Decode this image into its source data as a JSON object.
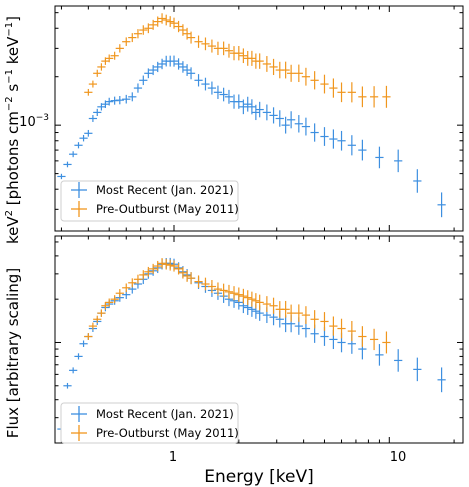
{
  "chart_data": [
    {
      "type": "scatter",
      "subtype": "errorbar",
      "ylabel_main": "keV",
      "ylabel_sup1": "2",
      "ylabel_mid": " [photons cm",
      "ylabel_sup2": "−2",
      "ylabel_mid2": " s",
      "ylabel_sup3": "−1",
      "ylabel_mid3": " keV",
      "ylabel_sup4": "−1",
      "ylabel_end": "]",
      "xscale": "log",
      "yscale": "log",
      "xlim": [
        0.28,
        22
      ],
      "ylim": [
        0.00022,
        0.0055
      ],
      "ytick_label": {
        "base": "10",
        "exp": "−3",
        "value": 0.001
      },
      "legend": {
        "placement": "lower-left",
        "entries": [
          "Most Recent (Jan. 2021)",
          "Pre-Outburst (May 2011)"
        ]
      },
      "series": [
        {
          "name": "Most Recent (Jan. 2021)",
          "color": "#3d8fe0",
          "x": [
            0.3,
            0.32,
            0.34,
            0.36,
            0.38,
            0.4,
            0.42,
            0.44,
            0.46,
            0.48,
            0.5,
            0.53,
            0.56,
            0.6,
            0.64,
            0.68,
            0.72,
            0.76,
            0.8,
            0.84,
            0.88,
            0.92,
            0.96,
            1.0,
            1.05,
            1.1,
            1.15,
            1.2,
            1.3,
            1.4,
            1.5,
            1.6,
            1.7,
            1.8,
            1.9,
            2.0,
            2.1,
            2.2,
            2.3,
            2.4,
            2.5,
            2.7,
            2.9,
            3.1,
            3.3,
            3.5,
            3.8,
            4.1,
            4.5,
            5.0,
            5.5,
            6.0,
            6.7,
            7.5,
            9.0,
            11.0,
            13.5,
            17.5
          ],
          "y": [
            0.00048,
            0.00057,
            0.00066,
            0.00075,
            0.00083,
            0.00089,
            0.0011,
            0.0012,
            0.0013,
            0.00135,
            0.0014,
            0.00142,
            0.00143,
            0.00145,
            0.0015,
            0.0017,
            0.0019,
            0.0021,
            0.0022,
            0.0023,
            0.0024,
            0.0025,
            0.0025,
            0.0025,
            0.0024,
            0.0023,
            0.0022,
            0.0021,
            0.0019,
            0.0018,
            0.0017,
            0.0016,
            0.00155,
            0.0015,
            0.0014,
            0.0014,
            0.0013,
            0.00135,
            0.0013,
            0.0012,
            0.00125,
            0.0012,
            0.00115,
            0.0011,
            0.001,
            0.00108,
            0.00102,
            0.00098,
            0.0009,
            0.00085,
            0.00082,
            0.0008,
            0.00075,
            0.0007,
            0.00063,
            0.0006,
            0.00045,
            0.00032
          ]
        },
        {
          "name": "Pre-Outburst (May 2011)",
          "color": "#f0961e",
          "x": [
            0.4,
            0.42,
            0.44,
            0.46,
            0.48,
            0.5,
            0.53,
            0.56,
            0.6,
            0.64,
            0.68,
            0.72,
            0.76,
            0.8,
            0.84,
            0.88,
            0.92,
            0.96,
            1.0,
            1.05,
            1.1,
            1.15,
            1.2,
            1.3,
            1.4,
            1.5,
            1.6,
            1.7,
            1.8,
            1.9,
            2.0,
            2.1,
            2.2,
            2.3,
            2.4,
            2.5,
            2.7,
            2.9,
            3.1,
            3.3,
            3.5,
            3.8,
            4.1,
            4.5,
            5.0,
            5.5,
            6.0,
            6.7,
            7.5,
            8.5,
            9.7
          ],
          "y": [
            0.0016,
            0.0018,
            0.0021,
            0.0023,
            0.0025,
            0.0026,
            0.0027,
            0.003,
            0.0033,
            0.0035,
            0.0037,
            0.0039,
            0.004,
            0.0042,
            0.0044,
            0.0046,
            0.0045,
            0.0044,
            0.0043,
            0.0041,
            0.0039,
            0.0037,
            0.0035,
            0.0033,
            0.0032,
            0.0031,
            0.003,
            0.003,
            0.0029,
            0.0028,
            0.0028,
            0.0027,
            0.0026,
            0.0026,
            0.0025,
            0.0025,
            0.0024,
            0.0023,
            0.0022,
            0.0022,
            0.0021,
            0.0021,
            0.002,
            0.0019,
            0.0018,
            0.0017,
            0.0016,
            0.0016,
            0.0015,
            0.0015,
            0.0015
          ]
        }
      ]
    },
    {
      "type": "scatter",
      "subtype": "errorbar",
      "xlabel": "Energy [keV]",
      "ylabel": "Flux [arbitrary scaling]",
      "xscale": "log",
      "yscale": "log",
      "xlim": [
        0.28,
        22
      ],
      "ylim": [
        0.2,
        5.5
      ],
      "xtick_labels": [
        {
          "value": 1,
          "label": "1"
        },
        {
          "value": 10,
          "label": "10"
        }
      ],
      "legend": {
        "placement": "lower-left",
        "entries": [
          "Most Recent (Jan. 2021)",
          "Pre-Outburst (May 2011)"
        ]
      },
      "series": [
        {
          "name": "Most Recent (Jan. 2021)",
          "color": "#3d8fe0",
          "x": [
            0.3,
            0.32,
            0.34,
            0.36,
            0.38,
            0.4,
            0.42,
            0.44,
            0.46,
            0.48,
            0.5,
            0.53,
            0.56,
            0.6,
            0.64,
            0.68,
            0.72,
            0.76,
            0.8,
            0.84,
            0.88,
            0.92,
            0.96,
            1.0,
            1.05,
            1.1,
            1.15,
            1.2,
            1.3,
            1.4,
            1.5,
            1.6,
            1.7,
            1.8,
            1.9,
            2.0,
            2.1,
            2.2,
            2.3,
            2.4,
            2.5,
            2.7,
            2.9,
            3.1,
            3.3,
            3.5,
            3.8,
            4.1,
            4.5,
            5.0,
            5.5,
            6.0,
            6.7,
            7.5,
            9.0,
            11.0,
            13.5,
            17.5
          ],
          "y": [
            0.25,
            0.5,
            0.64,
            0.8,
            0.98,
            1.1,
            1.25,
            1.4,
            1.6,
            1.75,
            1.85,
            1.95,
            2.05,
            2.15,
            2.35,
            2.55,
            2.75,
            3.0,
            3.15,
            3.3,
            3.5,
            3.55,
            3.55,
            3.5,
            3.3,
            3.1,
            2.95,
            2.8,
            2.6,
            2.45,
            2.3,
            2.2,
            2.1,
            2.0,
            1.95,
            1.9,
            1.8,
            1.75,
            1.7,
            1.65,
            1.6,
            1.55,
            1.5,
            1.45,
            1.35,
            1.35,
            1.3,
            1.25,
            1.15,
            1.1,
            1.05,
            1.0,
            0.98,
            0.9,
            0.82,
            0.75,
            0.65,
            0.55
          ]
        },
        {
          "name": "Pre-Outburst (May 2011)",
          "color": "#f0961e",
          "x": [
            0.4,
            0.42,
            0.44,
            0.46,
            0.48,
            0.5,
            0.53,
            0.56,
            0.6,
            0.64,
            0.68,
            0.72,
            0.76,
            0.8,
            0.84,
            0.88,
            0.92,
            0.96,
            1.0,
            1.05,
            1.1,
            1.15,
            1.2,
            1.3,
            1.4,
            1.5,
            1.6,
            1.7,
            1.8,
            1.9,
            2.0,
            2.1,
            2.2,
            2.3,
            2.4,
            2.5,
            2.7,
            2.9,
            3.1,
            3.3,
            3.5,
            3.8,
            4.1,
            4.5,
            5.0,
            5.5,
            6.0,
            6.7,
            7.5,
            8.5,
            9.7
          ],
          "y": [
            1.1,
            1.3,
            1.45,
            1.6,
            1.8,
            1.9,
            2.0,
            2.2,
            2.4,
            2.6,
            2.75,
            2.95,
            3.1,
            3.25,
            3.4,
            3.55,
            3.5,
            3.45,
            3.4,
            3.25,
            3.05,
            2.9,
            2.8,
            2.65,
            2.55,
            2.45,
            2.35,
            2.3,
            2.25,
            2.2,
            2.15,
            2.1,
            2.05,
            2.0,
            1.95,
            1.9,
            1.85,
            1.8,
            1.7,
            1.7,
            1.6,
            1.6,
            1.55,
            1.45,
            1.4,
            1.3,
            1.25,
            1.2,
            1.1,
            1.05,
            1.0
          ]
        }
      ]
    }
  ]
}
